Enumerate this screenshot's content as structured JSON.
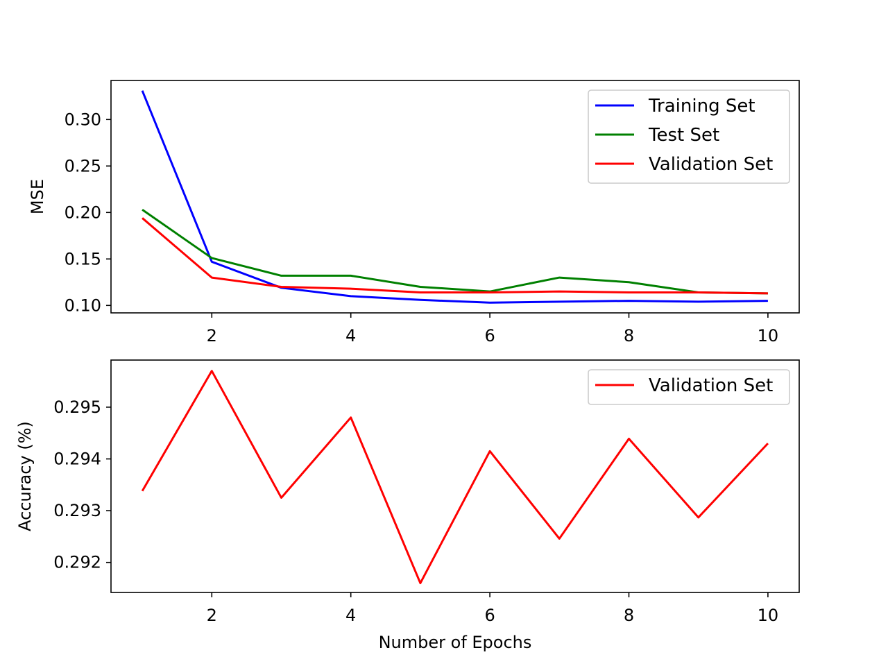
{
  "chart_data": [
    {
      "type": "line",
      "title": "",
      "xlabel": "",
      "ylabel": "MSE",
      "x": [
        1,
        2,
        3,
        4,
        5,
        6,
        7,
        8,
        9,
        10
      ],
      "xlim": [
        0.55,
        10.45
      ],
      "ylim": [
        0.092,
        0.342
      ],
      "xticks": [
        2,
        4,
        6,
        8,
        10
      ],
      "yticks": [
        0.1,
        0.15,
        0.2,
        0.25,
        0.3
      ],
      "ytick_labels": [
        "0.10",
        "0.15",
        "0.20",
        "0.25",
        "0.30"
      ],
      "grid": false,
      "legend": "top-right",
      "series": [
        {
          "name": "Training Set",
          "color": "#0000ff",
          "values": [
            0.331,
            0.147,
            0.119,
            0.11,
            0.106,
            0.103,
            0.104,
            0.105,
            0.104,
            0.105
          ]
        },
        {
          "name": "Test Set",
          "color": "#008000",
          "values": [
            0.203,
            0.151,
            0.132,
            0.132,
            0.12,
            0.115,
            0.13,
            0.125,
            0.114,
            0.113
          ]
        },
        {
          "name": "Validation Set",
          "color": "#ff0000",
          "values": [
            0.194,
            0.13,
            0.12,
            0.118,
            0.114,
            0.114,
            0.115,
            0.114,
            0.114,
            0.113
          ]
        }
      ]
    },
    {
      "type": "line",
      "title": "",
      "xlabel": "Number of Epochs",
      "ylabel": "Accuracy (%)",
      "x": [
        1,
        2,
        3,
        4,
        5,
        6,
        7,
        8,
        9,
        10
      ],
      "xlim": [
        0.55,
        10.45
      ],
      "ylim": [
        0.29142,
        0.29591
      ],
      "xticks": [
        2,
        4,
        6,
        8,
        10
      ],
      "yticks": [
        0.292,
        0.293,
        0.294,
        0.295
      ],
      "ytick_labels": [
        "0.292",
        "0.293",
        "0.294",
        "0.295"
      ],
      "grid": false,
      "legend": "top-right",
      "series": [
        {
          "name": "Validation Set",
          "color": "#ff0000",
          "values": [
            0.29338,
            0.2957,
            0.29325,
            0.2948,
            0.2916,
            0.29415,
            0.29246,
            0.29439,
            0.29287,
            0.2943
          ]
        }
      ]
    }
  ]
}
